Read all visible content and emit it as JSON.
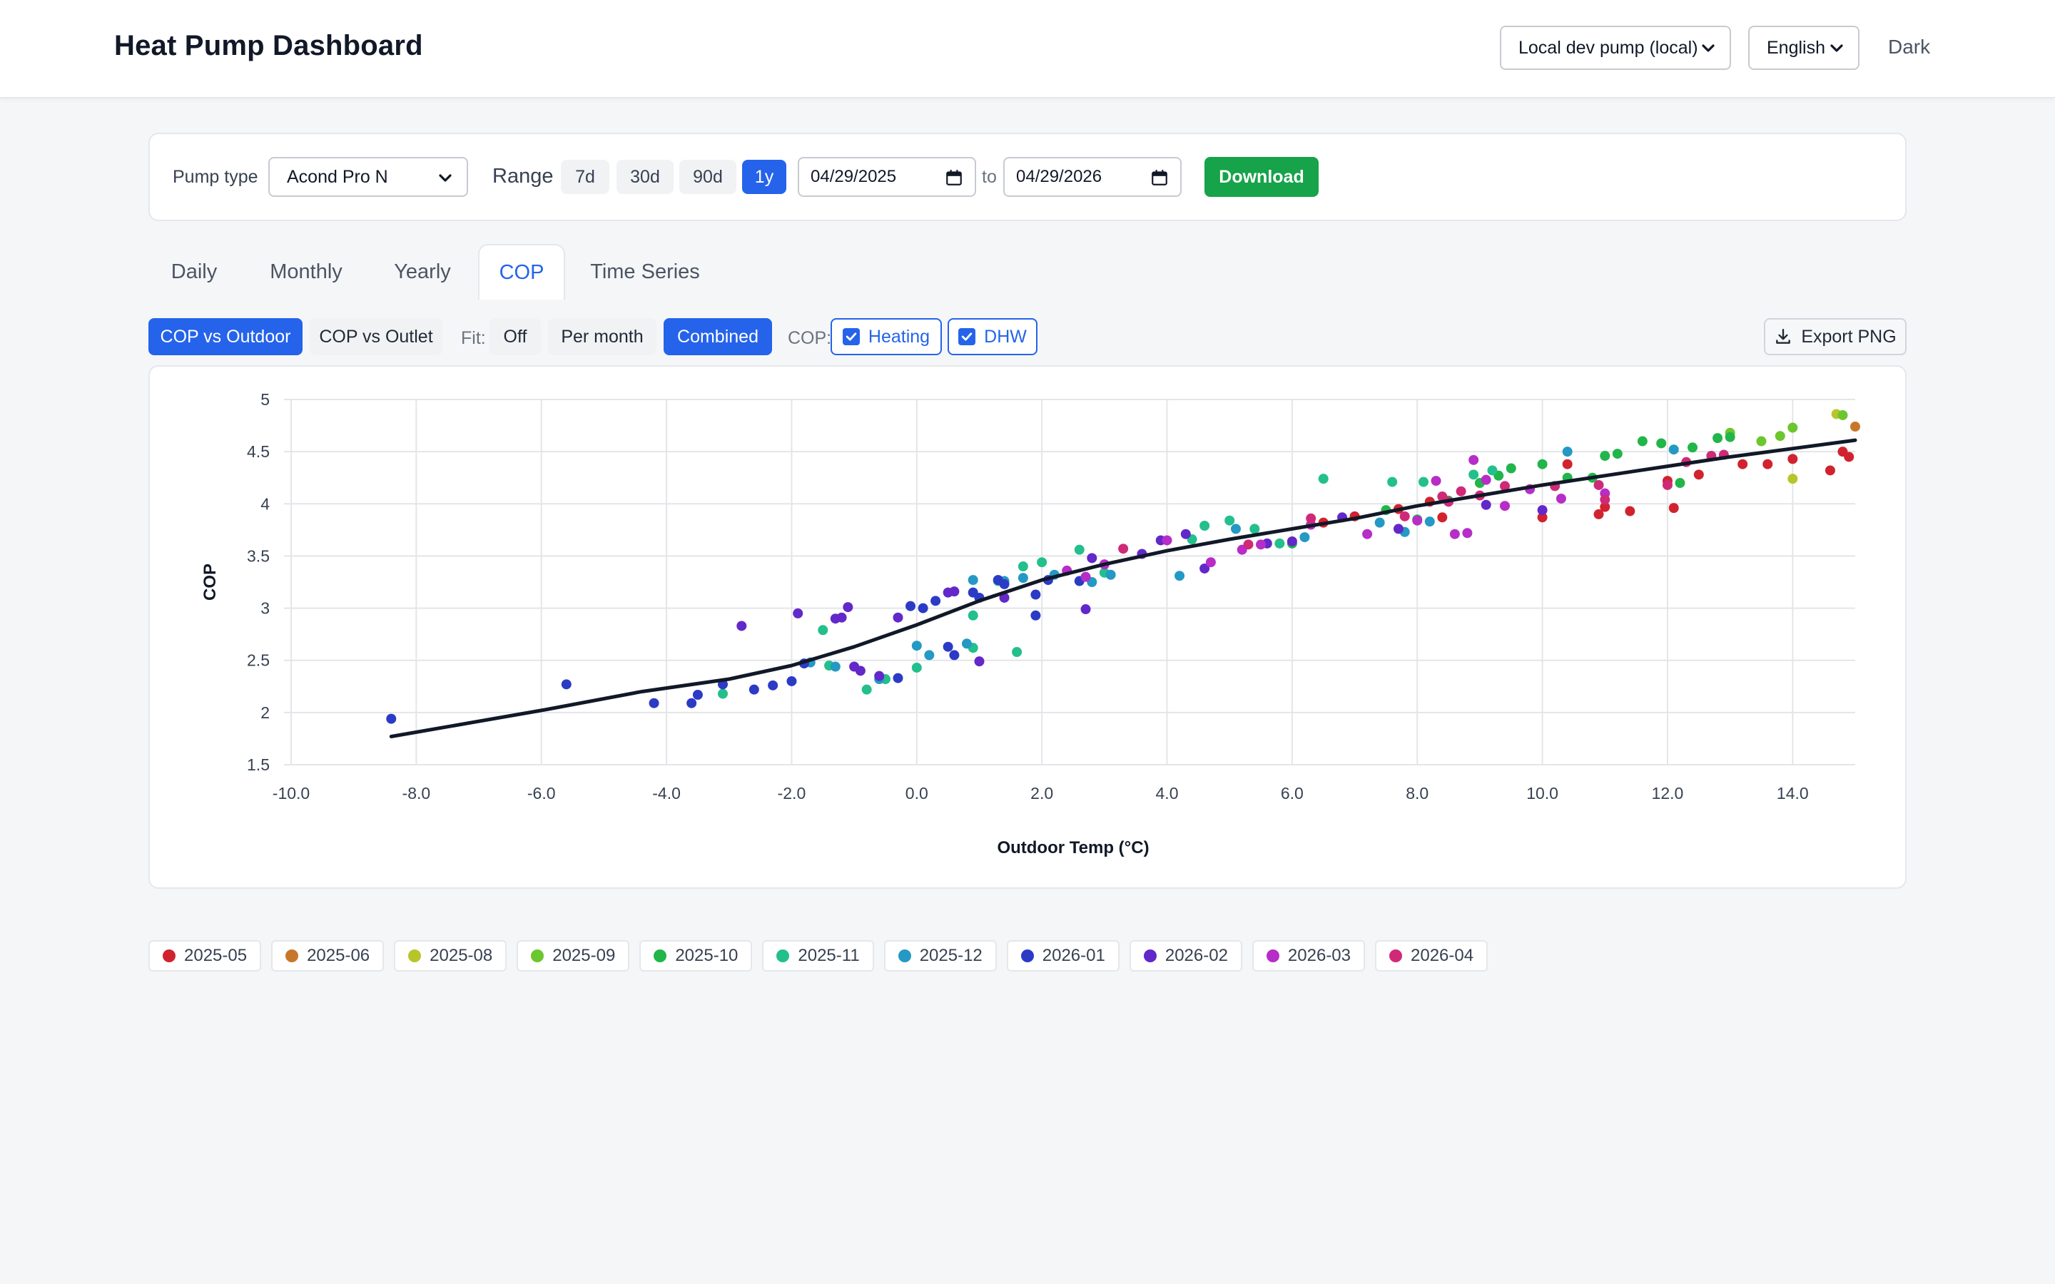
{
  "header": {
    "title": "Heat Pump Dashboard",
    "pump_source": "Local dev pump (local)",
    "language": "English",
    "theme_toggle": "Dark"
  },
  "controls": {
    "pump_type_label": "Pump type",
    "pump_type_value": "Acond Pro N",
    "range_label": "Range",
    "ranges": [
      "7d",
      "30d",
      "90d",
      "1y"
    ],
    "active_range": "1y",
    "date_from": "04/29/2025",
    "to_label": "to",
    "date_to": "04/29/2026",
    "download_label": "Download"
  },
  "tabs": [
    "Daily",
    "Monthly",
    "Yearly",
    "COP",
    "Time Series"
  ],
  "active_tab": "COP",
  "toolbar": {
    "view_outdoor": "COP vs Outdoor",
    "view_outlet": "COP vs Outlet",
    "fit_label": "Fit:",
    "fit_off": "Off",
    "fit_per_month": "Per month",
    "fit_combined": "Combined",
    "cop_label": "COP:",
    "heating_label": "Heating",
    "dhw_label": "DHW",
    "export_label": "Export PNG"
  },
  "colors": {
    "accent": "#2563eb",
    "download": "#16a34a",
    "fit_line": "#111827"
  },
  "chart_data": {
    "type": "scatter",
    "xlabel": "Outdoor Temp (°C)",
    "ylabel": "COP",
    "xlim": [
      -10,
      15
    ],
    "ylim": [
      1.5,
      5
    ],
    "xticks": [
      -10,
      -8,
      -6,
      -4,
      -2,
      0,
      2,
      4,
      6,
      8,
      10,
      12,
      14
    ],
    "xtick_labels": [
      "-10.0",
      "-8.0",
      "-6.0",
      "-4.0",
      "-2.0",
      "0.0",
      "2.0",
      "4.0",
      "6.0",
      "8.0",
      "10.0",
      "12.0",
      "14.0"
    ],
    "yticks": [
      1.5,
      2,
      2.5,
      3,
      3.5,
      4,
      4.5,
      5
    ],
    "ytick_labels": [
      "1.5",
      "2",
      "2.5",
      "3",
      "3.5",
      "4",
      "4.5",
      "5"
    ],
    "grid": true,
    "fit_line": {
      "x": [
        -8.4,
        -6,
        -4.4,
        -3,
        -2,
        -1,
        0,
        1,
        2,
        3,
        4,
        5,
        6,
        7,
        8,
        9,
        10,
        11,
        12,
        13,
        14,
        15
      ],
      "y": [
        1.77,
        2.02,
        2.2,
        2.32,
        2.45,
        2.63,
        2.84,
        3.07,
        3.27,
        3.42,
        3.55,
        3.66,
        3.76,
        3.86,
        3.98,
        4.08,
        4.18,
        4.27,
        4.36,
        4.45,
        4.53,
        4.61
      ]
    },
    "series": [
      {
        "name": "2025-05",
        "color": "#d1232f",
        "x": [
          6.5,
          7.0,
          7.7,
          8.2,
          8.4,
          10.0,
          10.4,
          10.9,
          11.0,
          11.4,
          12.0,
          12.1,
          12.5,
          13.2,
          13.6,
          14.0,
          14.6,
          14.8,
          14.9
        ],
        "y": [
          3.82,
          3.88,
          3.95,
          4.02,
          3.87,
          3.87,
          4.38,
          3.9,
          3.97,
          3.93,
          4.22,
          3.96,
          4.28,
          4.38,
          4.38,
          4.43,
          4.32,
          4.5,
          4.45
        ]
      },
      {
        "name": "2025-06",
        "color": "#c7772a",
        "x": [
          15.0
        ],
        "y": [
          4.74
        ]
      },
      {
        "name": "2025-08",
        "color": "#b8c52a",
        "x": [
          14.0,
          14.7
        ],
        "y": [
          4.24,
          4.86
        ]
      },
      {
        "name": "2025-09",
        "color": "#6cc62e",
        "x": [
          13.0,
          13.5,
          13.8,
          14.0,
          14.8
        ],
        "y": [
          4.68,
          4.6,
          4.65,
          4.73,
          4.85
        ]
      },
      {
        "name": "2025-10",
        "color": "#21b54a",
        "x": [
          6.0,
          7.5,
          8.0,
          8.5,
          9.0,
          9.3,
          9.5,
          10.0,
          10.4,
          10.8,
          11.0,
          11.2,
          11.6,
          11.9,
          12.2,
          12.4,
          12.8,
          13.0
        ],
        "y": [
          3.62,
          3.94,
          3.85,
          4.03,
          4.2,
          4.27,
          4.34,
          4.38,
          4.25,
          4.25,
          4.46,
          4.48,
          4.6,
          4.58,
          4.2,
          4.54,
          4.63,
          4.64
        ]
      },
      {
        "name": "2025-11",
        "color": "#23bf8c",
        "x": [
          -3.1,
          -1.5,
          -1.4,
          -0.8,
          -0.5,
          0.0,
          0.9,
          0.9,
          1.3,
          1.6,
          1.7,
          2.0,
          2.6,
          3.0,
          4.4,
          4.6,
          5.0,
          5.4,
          5.8,
          6.5,
          7.6,
          8.1,
          8.9,
          9.2
        ],
        "y": [
          2.18,
          2.79,
          2.45,
          2.22,
          2.32,
          2.43,
          2.62,
          2.93,
          3.26,
          2.58,
          3.4,
          3.44,
          3.56,
          3.34,
          3.66,
          3.79,
          3.84,
          3.76,
          3.62,
          4.24,
          4.21,
          4.21,
          4.28,
          4.32
        ]
      },
      {
        "name": "2025-12",
        "color": "#2399c4",
        "x": [
          -1.7,
          -1.3,
          -0.6,
          0.0,
          0.2,
          0.8,
          0.9,
          1.3,
          1.4,
          1.7,
          2.2,
          2.8,
          3.1,
          4.2,
          5.1,
          6.2,
          7.4,
          7.8,
          8.2,
          10.4,
          12.1
        ],
        "y": [
          2.48,
          2.44,
          2.32,
          2.64,
          2.55,
          2.66,
          3.27,
          3.27,
          3.26,
          3.29,
          3.32,
          3.25,
          3.32,
          3.31,
          3.76,
          3.68,
          3.82,
          3.73,
          3.83,
          4.5,
          4.52
        ]
      },
      {
        "name": "2026-01",
        "color": "#2b3bc6",
        "x": [
          -8.4,
          -5.6,
          -4.2,
          -3.6,
          -3.5,
          -3.1,
          -2.6,
          -2.3,
          -2.0,
          -1.8,
          -0.3,
          -0.1,
          0.1,
          0.3,
          0.5,
          0.6,
          0.9,
          1.0,
          1.3,
          1.4,
          1.9,
          1.9,
          2.1,
          2.6
        ],
        "y": [
          1.94,
          2.27,
          2.09,
          2.09,
          2.17,
          2.27,
          2.22,
          2.26,
          2.3,
          2.47,
          2.33,
          3.02,
          3.0,
          3.07,
          2.63,
          2.55,
          3.15,
          3.1,
          3.27,
          3.23,
          2.93,
          3.13,
          3.27,
          3.26
        ]
      },
      {
        "name": "2026-02",
        "color": "#6228c9",
        "x": [
          -2.8,
          -1.9,
          -1.3,
          -1.2,
          -1.1,
          -1.0,
          -0.9,
          -0.6,
          -0.3,
          0.5,
          0.6,
          1.0,
          1.4,
          2.7,
          2.8,
          3.6,
          3.9,
          4.3,
          4.6,
          5.6,
          6.0,
          6.8,
          7.7,
          9.1,
          10.0
        ],
        "y": [
          2.83,
          2.95,
          2.9,
          2.91,
          3.01,
          2.44,
          2.4,
          2.35,
          2.91,
          3.15,
          3.16,
          2.49,
          3.1,
          2.99,
          3.48,
          3.52,
          3.65,
          3.71,
          3.38,
          3.62,
          3.64,
          3.87,
          3.76,
          3.99,
          3.94
        ]
      },
      {
        "name": "2026-03",
        "color": "#b62dc7",
        "x": [
          2.4,
          2.7,
          3.0,
          4.0,
          4.7,
          5.2,
          5.5,
          6.3,
          7.2,
          8.0,
          8.3,
          8.6,
          8.8,
          8.9,
          9.1,
          9.4,
          9.8,
          10.3,
          11.0
        ],
        "y": [
          3.36,
          3.3,
          3.42,
          3.65,
          3.44,
          3.56,
          3.61,
          3.8,
          3.71,
          3.84,
          4.22,
          3.71,
          3.72,
          4.42,
          4.23,
          3.98,
          4.14,
          4.05,
          4.1
        ]
      },
      {
        "name": "2026-04",
        "color": "#cf2a78",
        "x": [
          3.3,
          5.3,
          6.3,
          7.8,
          8.4,
          8.5,
          8.7,
          9.0,
          9.4,
          10.2,
          10.9,
          11.0,
          12.0,
          12.3,
          12.7,
          12.9
        ],
        "y": [
          3.57,
          3.61,
          3.86,
          3.88,
          4.07,
          4.02,
          4.12,
          4.08,
          4.17,
          4.17,
          4.18,
          4.04,
          4.18,
          4.4,
          4.46,
          4.47
        ]
      }
    ]
  }
}
